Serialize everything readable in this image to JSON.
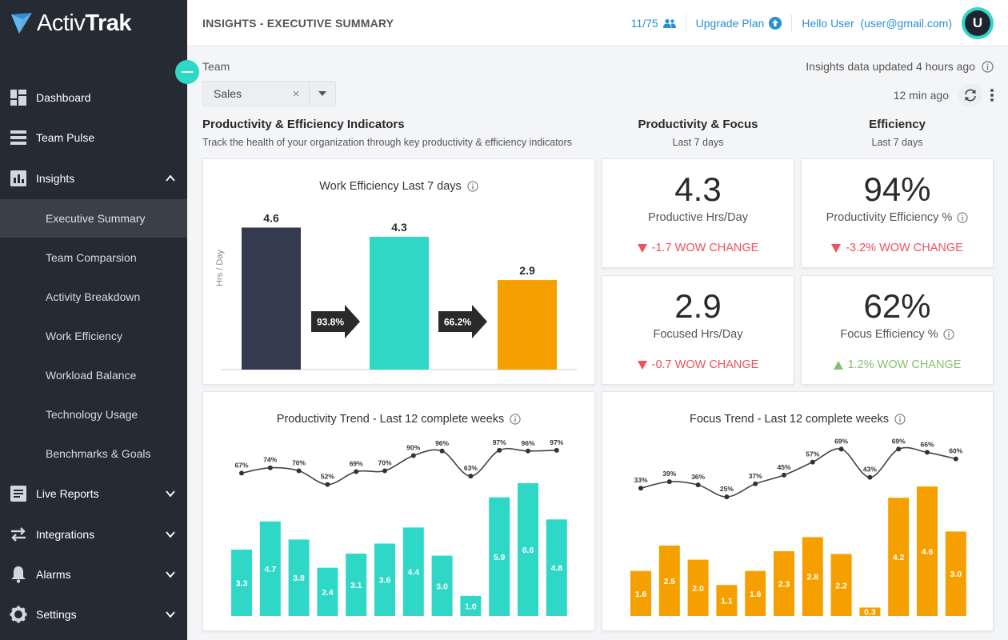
{
  "brand": {
    "name_part1": "Activ",
    "name_part2": "Trak"
  },
  "colors": {
    "sidebar_bg": "#252a33",
    "accent_teal": "#2fd8c6",
    "accent_orange": "#f6a000",
    "dark_bar": "#353b4f",
    "link_blue": "#2b8fd3",
    "negative": "#f0515b",
    "positive": "#86c26a"
  },
  "sidebar": {
    "items": [
      {
        "label": "Dashboard",
        "icon": "dashboard-icon"
      },
      {
        "label": "Team Pulse",
        "icon": "team-pulse-icon"
      },
      {
        "label": "Insights",
        "icon": "insights-icon",
        "expanded": true
      },
      {
        "label": "Live Reports",
        "icon": "live-reports-icon"
      },
      {
        "label": "Integrations",
        "icon": "integrations-icon"
      },
      {
        "label": "Alarms",
        "icon": "bell-icon"
      },
      {
        "label": "Settings",
        "icon": "gear-icon"
      }
    ],
    "subitems": [
      {
        "label": "Executive Summary",
        "active": true
      },
      {
        "label": "Team Comparsion"
      },
      {
        "label": "Activity Breakdown"
      },
      {
        "label": "Work Efficiency"
      },
      {
        "label": "Workload Balance"
      },
      {
        "label": "Technology Usage"
      },
      {
        "label": "Benchmarks & Goals"
      }
    ]
  },
  "header": {
    "title": "INSIGHTS - EXECUTIVE SUMMARY",
    "seats": "11/75",
    "upgrade": "Upgrade Plan",
    "greeting": "Hello User",
    "email": "(user@gmail.com)",
    "avatar_initial": "U"
  },
  "filters": {
    "team_label": "Team",
    "team_value": "Sales",
    "updated_text": "Insights data updated 4 hours ago",
    "refresh_ago": "12 min ago"
  },
  "sections": {
    "indicators_title": "Productivity & Efficiency Indicators",
    "indicators_subtitle": "Track the health of your organization through key productivity & efficiency indicators",
    "focus_title": "Productivity & Focus",
    "focus_sub": "Last 7 days",
    "efficiency_title": "Efficiency",
    "efficiency_sub": "Last 7 days"
  },
  "metrics": [
    {
      "value": "4.3",
      "label": "Productive Hrs/Day",
      "change": "-1.7 WOW CHANGE",
      "direction": "down",
      "info": false
    },
    {
      "value": "94%",
      "label": "Productivity Efficiency %",
      "change": "-3.2% WOW CHANGE",
      "direction": "down",
      "info": true
    },
    {
      "value": "2.9",
      "label": "Focused Hrs/Day",
      "change": "-0.7 WOW CHANGE",
      "direction": "down",
      "info": false
    },
    {
      "value": "62%",
      "label": "Focus Efficiency %",
      "change": "1.2% WOW CHANGE",
      "direction": "up",
      "info": true
    }
  ],
  "chart_data": [
    {
      "type": "bar",
      "title": "Work Efficiency Last 7 days",
      "ylabel": "Hrs / Day",
      "values": [
        4.6,
        4.3,
        2.9
      ],
      "value_labels": [
        "4.6",
        "4.3",
        "2.9"
      ],
      "colors": [
        "#353b4f",
        "#2fd8c6",
        "#f6a000"
      ],
      "arrow_labels": [
        "93.8%",
        "66.2%"
      ],
      "ylim": [
        0,
        5
      ]
    },
    {
      "type": "bar",
      "title": "Productivity Trend - Last 12 complete weeks",
      "color": "#2fd8c6",
      "bar_values": [
        3.3,
        4.7,
        3.8,
        2.4,
        3.1,
        3.6,
        4.4,
        3.0,
        1.0,
        5.9,
        6.6,
        4.8
      ],
      "bar_labels": [
        "3.3",
        "4.7",
        "3.8",
        "2.4",
        "3.1",
        "3.6",
        "4.4",
        "3.0",
        "1.0",
        "5.9",
        "6.6",
        "4.8"
      ],
      "line_values": [
        67,
        74,
        70,
        52,
        69,
        70,
        90,
        96,
        63,
        97,
        96,
        97
      ],
      "line_labels": [
        "67%",
        "74%",
        "70%",
        "52%",
        "69%",
        "70%",
        "90%",
        "96%",
        "63%",
        "97%",
        "96%",
        "97%"
      ],
      "bar_ylim": [
        0,
        7
      ],
      "line_ylim": [
        0,
        100
      ]
    },
    {
      "type": "bar",
      "title": "Focus Trend - Last 12 complete weeks",
      "color": "#f6a000",
      "bar_values": [
        1.6,
        2.5,
        2.0,
        1.1,
        1.6,
        2.3,
        2.8,
        2.2,
        0.3,
        4.2,
        4.6,
        3.0
      ],
      "bar_labels": [
        "1.6",
        "2.5",
        "2.0",
        "1.1",
        "1.6",
        "2.3",
        "2.8",
        "2.2",
        "0.3",
        "4.2",
        "4.6",
        "3.0"
      ],
      "line_values": [
        33,
        39,
        36,
        25,
        37,
        45,
        57,
        69,
        43,
        69,
        66,
        60
      ],
      "line_labels": [
        "33%",
        "39%",
        "36%",
        "25%",
        "37%",
        "45%",
        "57%",
        "69%",
        "43%",
        "69%",
        "66%",
        "60%"
      ],
      "bar_ylim": [
        0,
        5
      ],
      "line_ylim": [
        0,
        70
      ]
    }
  ]
}
